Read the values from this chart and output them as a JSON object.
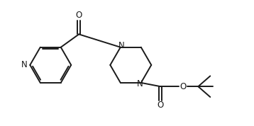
{
  "bg_color": "#ffffff",
  "line_color": "#1a1a1a",
  "line_width": 1.4,
  "figsize": [
    3.58,
    1.78
  ],
  "dpi": 100,
  "xlim": [
    0,
    10
  ],
  "ylim": [
    0,
    5
  ]
}
